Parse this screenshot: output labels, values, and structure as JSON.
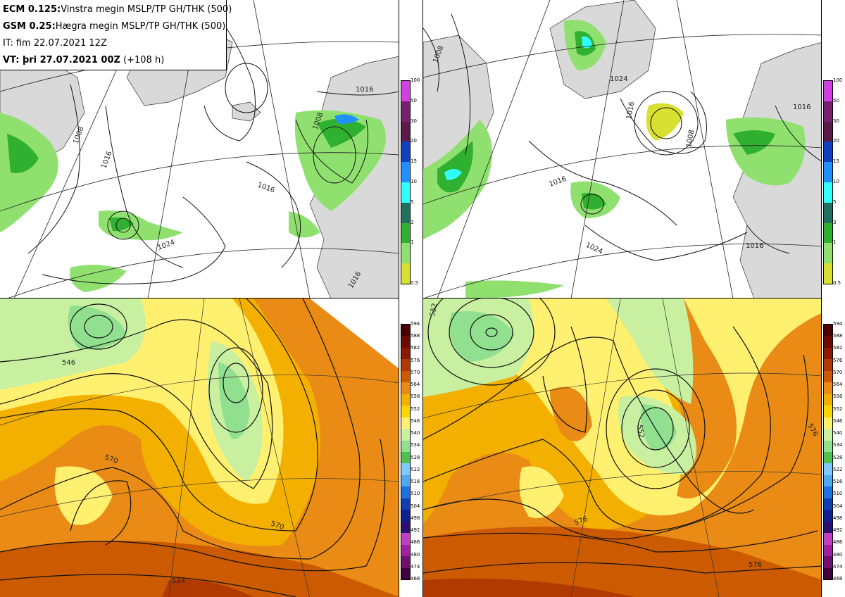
{
  "header": {
    "line1_bold": "ECM 0.125:",
    "line1_text": "Vinstra megin MSLP/TP GH/THK (500)",
    "line2_bold": "GSM 0.25:",
    "line2_text": "Hægra megin MSLP/TP GH/THK (500)",
    "line3_text": "IT: fim 22.07.2021 12Z",
    "line4_bold": "VT: þri 27.07.2021 00Z",
    "line4_text": " (+108 h)"
  },
  "precip_legend": {
    "labels": [
      "100",
      "50",
      "30",
      "20",
      "15",
      "10",
      "5",
      "3",
      "1",
      "0.5"
    ],
    "colors": [
      "#d040e0",
      "#7a2070",
      "#5a1a4a",
      "#1040c0",
      "#2090ff",
      "#30ffff",
      "#207060",
      "#30b030",
      "#90e070",
      "#d8e030"
    ]
  },
  "height_legend": {
    "labels": [
      "594",
      "588",
      "582",
      "576",
      "570",
      "564",
      "558",
      "552",
      "546",
      "540",
      "534",
      "528",
      "522",
      "516",
      "510",
      "504",
      "498",
      "492",
      "486",
      "480",
      "474",
      "468"
    ],
    "colors": [
      "#4a0000",
      "#6a0a00",
      "#8a1a00",
      "#b03a00",
      "#cc5a00",
      "#e98b14",
      "#f3b000",
      "#fbd600",
      "#fff070",
      "#c8f0a0",
      "#90e090",
      "#50c050",
      "#80c8ff",
      "#50a8f0",
      "#2070e0",
      "#1040b0",
      "#102090",
      "#2a1070",
      "#c040c0",
      "#a020a0",
      "#701070",
      "#400040"
    ]
  },
  "top_left": {
    "isobar_labels": [
      "1008",
      "1016",
      "1016",
      "1008",
      "1016",
      "1024",
      "1016"
    ]
  },
  "top_right": {
    "isobar_labels": [
      "1008",
      "1016",
      "1008",
      "1016",
      "1016",
      "1024",
      "1016",
      "1024"
    ]
  },
  "bottom_left": {
    "height_labels": [
      "546",
      "570",
      "570",
      "594"
    ]
  },
  "bottom_right": {
    "height_labels": [
      "552",
      "552",
      "576",
      "576",
      "576"
    ]
  }
}
